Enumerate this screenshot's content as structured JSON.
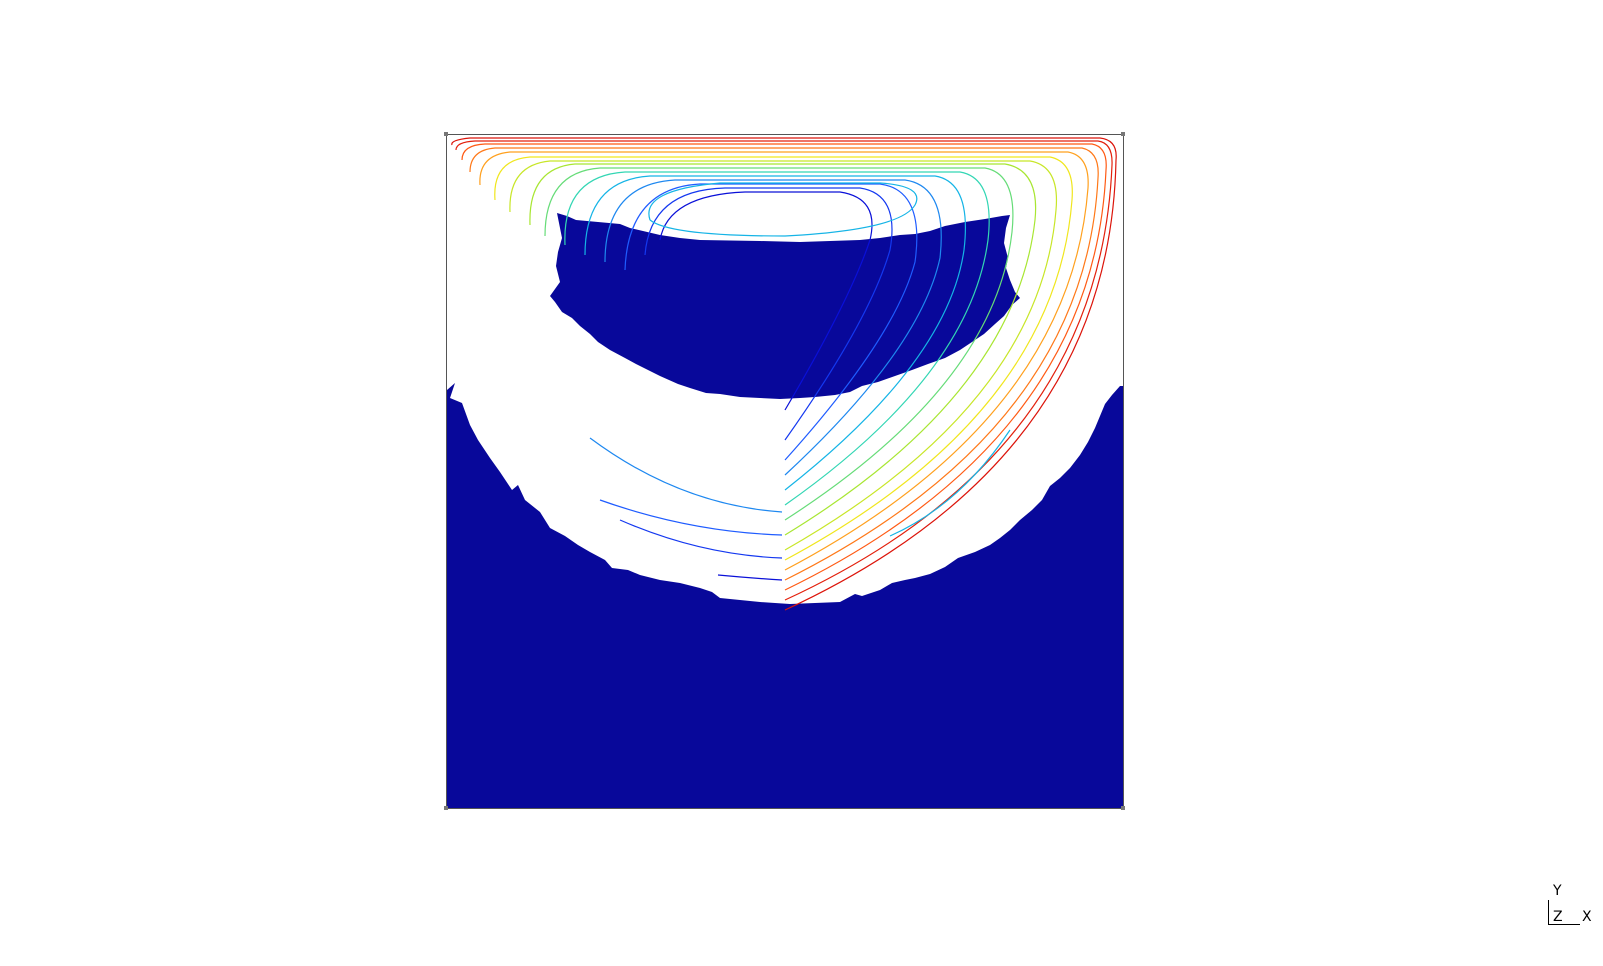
{
  "scene": {
    "background_color": "#ffffff",
    "mask_color": "#08089a",
    "frame_color": "#555555",
    "streamline_palette": [
      "#0a10d8",
      "#1f5cff",
      "#15b4e6",
      "#33d6b4",
      "#a8e632",
      "#f0e61e",
      "#ffa01e",
      "#ff5a14",
      "#dc140a"
    ]
  },
  "orientation_axes": {
    "y_label": "Y",
    "z_label": "Z",
    "x_label": "X"
  }
}
